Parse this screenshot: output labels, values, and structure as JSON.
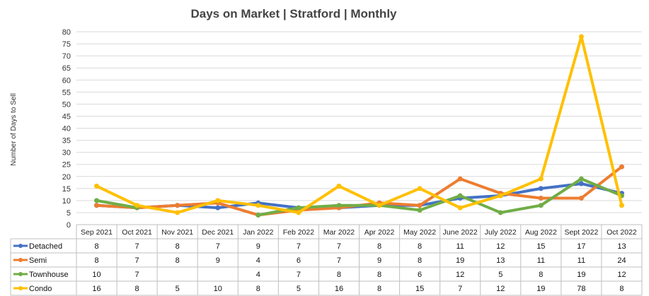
{
  "chart_data": {
    "type": "line",
    "title": "Days on Market | Stratford | Monthly",
    "ylabel": "Number of Days to Sell",
    "xlabel": "",
    "ylim": [
      0,
      80
    ],
    "yticks": [
      0,
      5,
      10,
      15,
      20,
      25,
      30,
      35,
      40,
      45,
      50,
      55,
      60,
      65,
      70,
      75,
      80
    ],
    "categories": [
      "Sep 2021",
      "Oct 2021",
      "Nov 2021",
      "Dec 2021",
      "Jan 2022",
      "Feb 2022",
      "Mar 2022",
      "Apr 2022",
      "May 2022",
      "June 2022",
      "July 2022",
      "Aug 2022",
      "Sept 2022",
      "Oct 2022"
    ],
    "series": [
      {
        "name": "Detached",
        "color": "#4472C4",
        "values": [
          8,
          7,
          8,
          7,
          9,
          7,
          7,
          8,
          8,
          11,
          12,
          15,
          17,
          13
        ]
      },
      {
        "name": "Semi",
        "color": "#ED7D31",
        "values": [
          8,
          7,
          8,
          9,
          4,
          6,
          7,
          9,
          8,
          19,
          13,
          11,
          11,
          24
        ]
      },
      {
        "name": "Townhouse",
        "color": "#70AD47",
        "values": [
          10,
          7,
          null,
          null,
          4,
          7,
          8,
          8,
          6,
          12,
          5,
          8,
          19,
          12
        ]
      },
      {
        "name": "Condo",
        "color": "#FFC000",
        "values": [
          16,
          8,
          5,
          10,
          8,
          5,
          16,
          8,
          15,
          7,
          12,
          19,
          78,
          8
        ]
      }
    ],
    "grid": true,
    "legend": "data-table-left"
  }
}
